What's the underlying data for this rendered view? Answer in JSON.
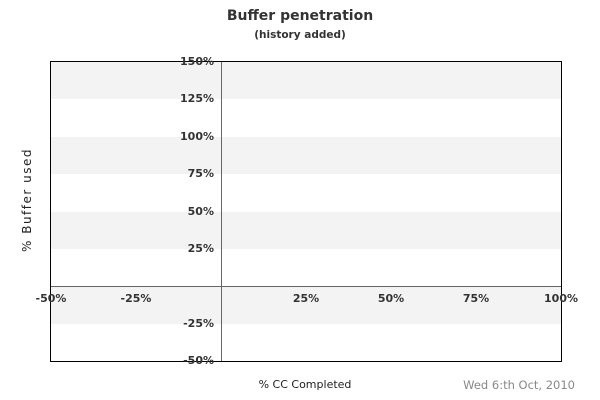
{
  "chart": {
    "title": "Buffer penetration",
    "subtitle": "(history added)",
    "xlabel": "% CC Completed",
    "ylabel": "% Buffer used",
    "footer_date": "Wed 6:th Oct, 2010"
  },
  "chart_data": {
    "type": "scatter",
    "title": "Buffer penetration",
    "subtitle": "(history added)",
    "xlabel": "% CC Completed",
    "ylabel": "% Buffer used",
    "xlim": [
      -50,
      100
    ],
    "ylim": [
      -50,
      150
    ],
    "x_ticks": [
      {
        "value": -50,
        "label": "-50%"
      },
      {
        "value": -25,
        "label": "-25%"
      },
      {
        "value": 25,
        "label": "25%"
      },
      {
        "value": 50,
        "label": "50%"
      },
      {
        "value": 75,
        "label": "75%"
      },
      {
        "value": 100,
        "label": "100%"
      }
    ],
    "y_ticks": [
      {
        "value": 150,
        "label": "150%"
      },
      {
        "value": 125,
        "label": "125%"
      },
      {
        "value": 100,
        "label": "100%"
      },
      {
        "value": 75,
        "label": "75%"
      },
      {
        "value": 50,
        "label": "50%"
      },
      {
        "value": 25,
        "label": "25%"
      },
      {
        "value": -25,
        "label": "-25%"
      },
      {
        "value": -50,
        "label": "-50%"
      }
    ],
    "bands": {
      "color": "#f3f3f3",
      "ranges": [
        [
          -25,
          0
        ],
        [
          25,
          50
        ],
        [
          75,
          100
        ],
        [
          125,
          150
        ]
      ]
    },
    "zero_lines": {
      "x": 0,
      "y": 0,
      "color": "#666666"
    },
    "series": [],
    "grid": "horizontal-bands-only",
    "legend": "none",
    "footer_date": "Wed 6:th Oct, 2010"
  }
}
